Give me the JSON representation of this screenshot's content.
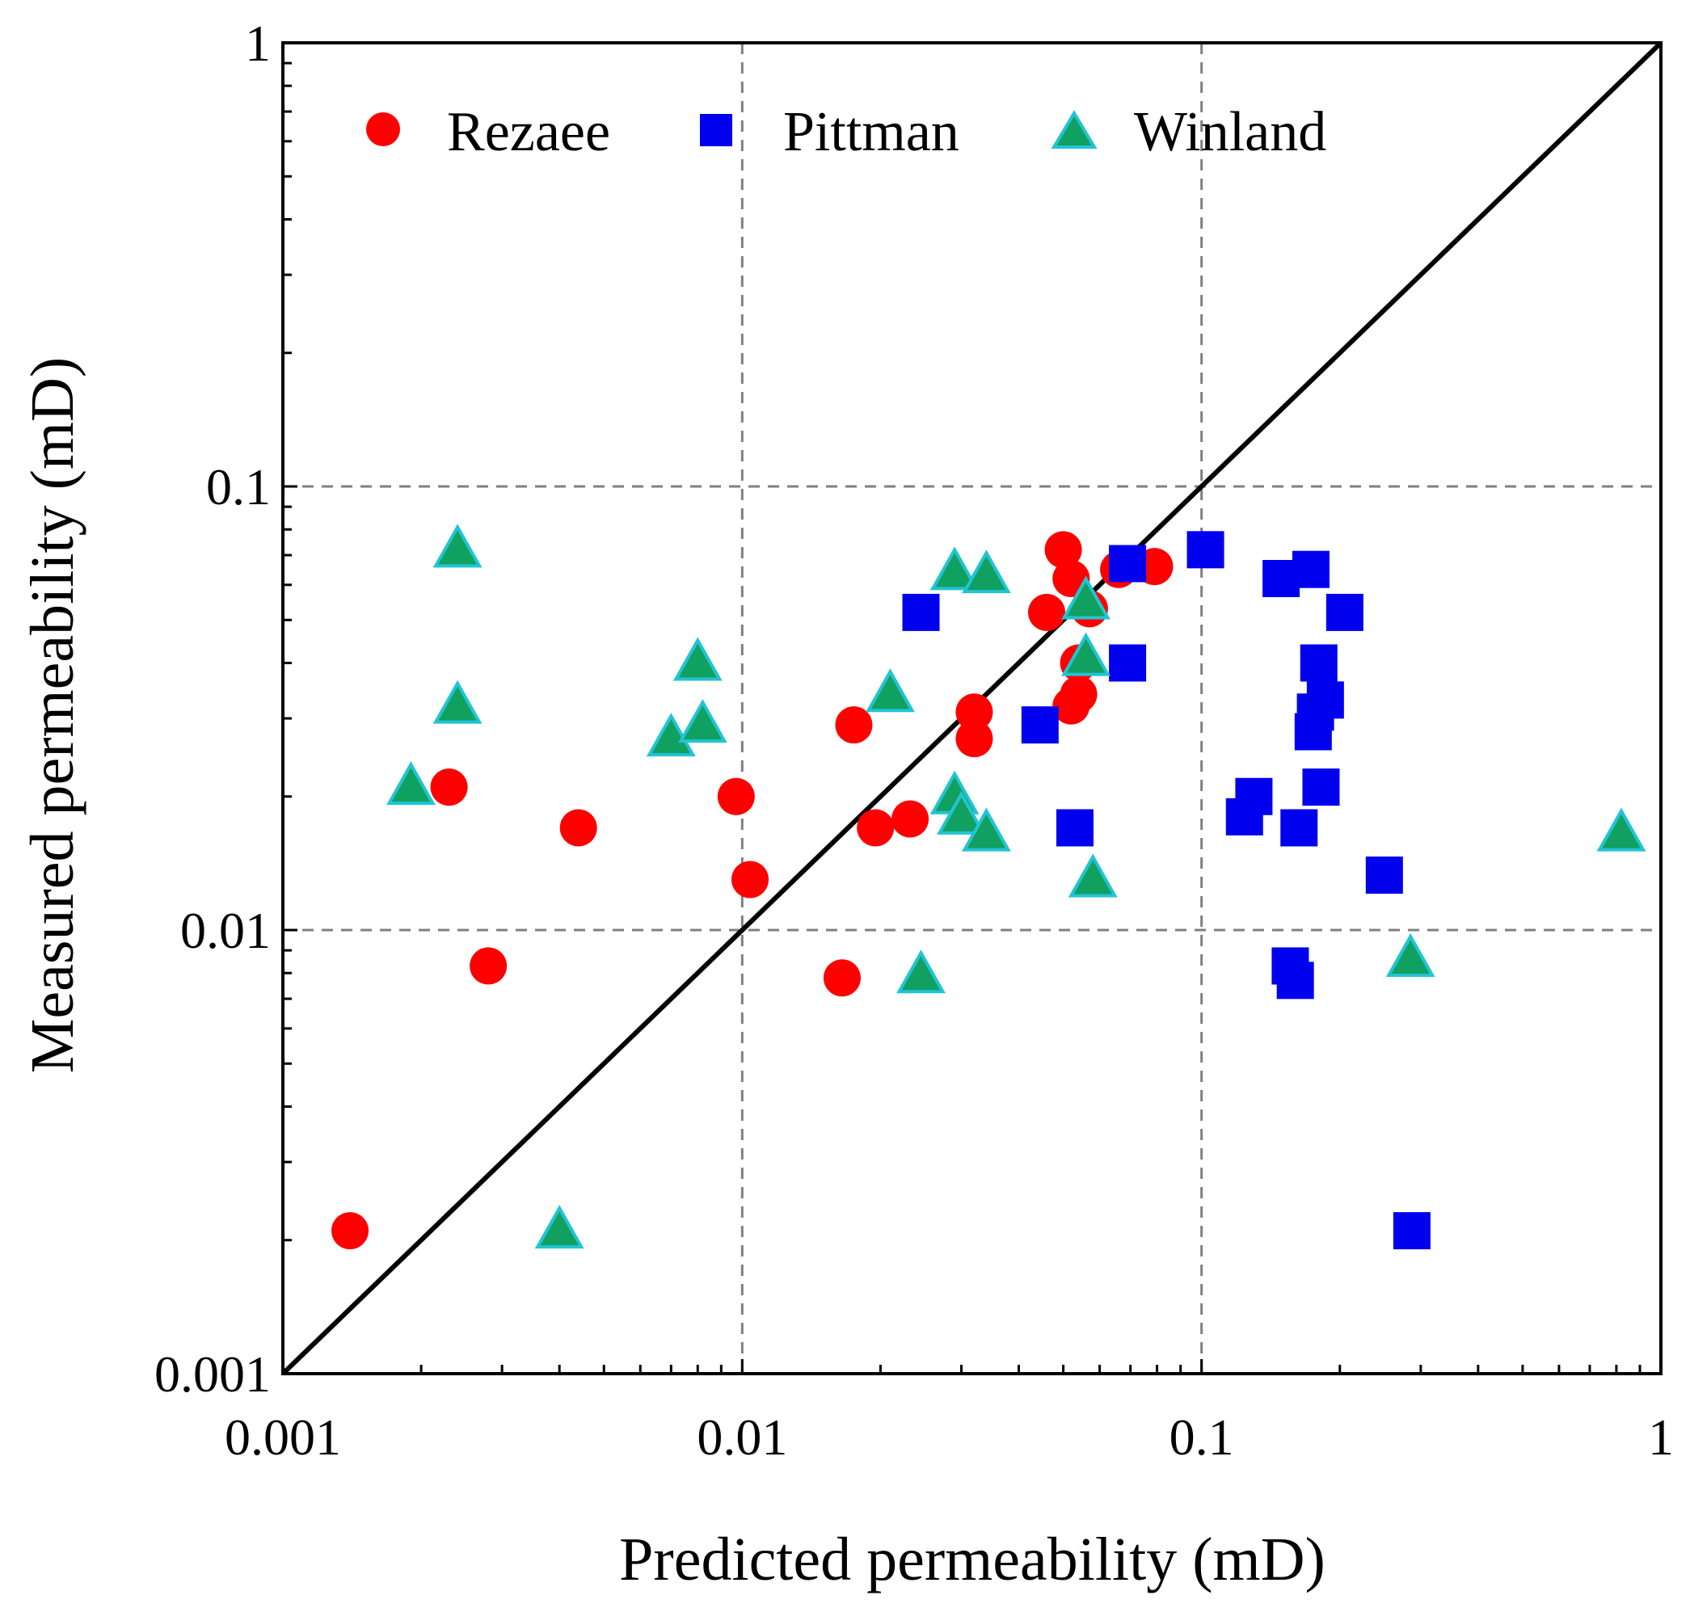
{
  "chart_data": {
    "type": "scatter",
    "xscale": "log",
    "yscale": "log",
    "xlim": [
      0.001,
      1
    ],
    "ylim": [
      0.001,
      1
    ],
    "xlabel": "Predicted permeability (mD)",
    "ylabel": "Measured permeability (mD)",
    "xticks": [
      "0.001",
      "0.01",
      "0.1",
      "1"
    ],
    "yticks": [
      "0.001",
      "0.01",
      "0.1",
      "1"
    ],
    "grid": "dashed at 0.01 and 0.1",
    "reference_line": "1:1 line",
    "legend_position": "top",
    "colors": {
      "rezaee": "#ff0000",
      "pittman": "#0000ee",
      "winland_fill": "#10a060",
      "winland_edge": "#22c4d4",
      "grid": "#808080",
      "axis": "#000000"
    },
    "series": [
      {
        "name": "Rezaee",
        "marker": "circle",
        "color": "#ff0000",
        "points": [
          [
            0.0014,
            0.0021
          ],
          [
            0.0023,
            0.021
          ],
          [
            0.0028,
            0.0083
          ],
          [
            0.0044,
            0.017
          ],
          [
            0.0097,
            0.02
          ],
          [
            0.0104,
            0.013
          ],
          [
            0.0165,
            0.0078
          ],
          [
            0.0175,
            0.029
          ],
          [
            0.0195,
            0.017
          ],
          [
            0.0232,
            0.0178
          ],
          [
            0.032,
            0.031
          ],
          [
            0.032,
            0.027
          ],
          [
            0.046,
            0.052
          ],
          [
            0.05,
            0.072
          ],
          [
            0.052,
            0.062
          ],
          [
            0.052,
            0.032
          ],
          [
            0.054,
            0.034
          ],
          [
            0.054,
            0.04
          ],
          [
            0.057,
            0.053
          ],
          [
            0.066,
            0.065
          ],
          [
            0.079,
            0.066
          ]
        ]
      },
      {
        "name": "Pittman",
        "marker": "square",
        "color": "#0000ee",
        "points": [
          [
            0.0245,
            0.052
          ],
          [
            0.0445,
            0.029
          ],
          [
            0.053,
            0.017
          ],
          [
            0.069,
            0.067
          ],
          [
            0.069,
            0.04
          ],
          [
            0.102,
            0.072
          ],
          [
            0.124,
            0.018
          ],
          [
            0.13,
            0.02
          ],
          [
            0.149,
            0.062
          ],
          [
            0.156,
            0.0083
          ],
          [
            0.16,
            0.0077
          ],
          [
            0.163,
            0.017
          ],
          [
            0.173,
            0.065
          ],
          [
            0.175,
            0.028
          ],
          [
            0.177,
            0.031
          ],
          [
            0.18,
            0.04
          ],
          [
            0.182,
            0.021
          ],
          [
            0.186,
            0.033
          ],
          [
            0.205,
            0.052
          ],
          [
            0.25,
            0.0133
          ],
          [
            0.287,
            0.0021
          ]
        ]
      },
      {
        "name": "Winland",
        "marker": "triangle",
        "color": "#10a060",
        "edge_color": "#22c4d4",
        "points": [
          [
            0.0019,
            0.021
          ],
          [
            0.0024,
            0.072
          ],
          [
            0.0024,
            0.032
          ],
          [
            0.004,
            0.0021
          ],
          [
            0.007,
            0.027
          ],
          [
            0.008,
            0.04
          ],
          [
            0.0082,
            0.029
          ],
          [
            0.021,
            0.034
          ],
          [
            0.0245,
            0.0079
          ],
          [
            0.029,
            0.064
          ],
          [
            0.029,
            0.02
          ],
          [
            0.03,
            0.018
          ],
          [
            0.034,
            0.063
          ],
          [
            0.034,
            0.0165
          ],
          [
            0.056,
            0.055
          ],
          [
            0.056,
            0.041
          ],
          [
            0.058,
            0.013
          ],
          [
            0.285,
            0.0086
          ],
          [
            0.82,
            0.0165
          ]
        ]
      }
    ]
  }
}
